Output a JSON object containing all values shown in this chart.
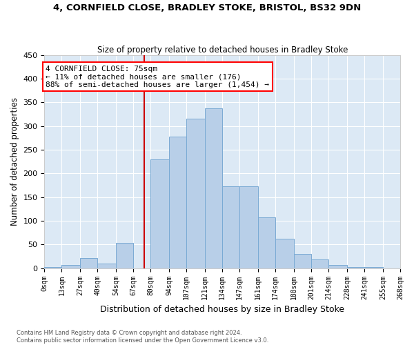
{
  "title": "4, CORNFIELD CLOSE, BRADLEY STOKE, BRISTOL, BS32 9DN",
  "subtitle": "Size of property relative to detached houses in Bradley Stoke",
  "xlabel": "Distribution of detached houses by size in Bradley Stoke",
  "ylabel": "Number of detached properties",
  "annotation_line1": "4 CORNFIELD CLOSE: 75sqm",
  "annotation_line2": "← 11% of detached houses are smaller (176)",
  "annotation_line3": "88% of semi-detached houses are larger (1,454) →",
  "property_value": 75,
  "bar_color": "#b8cfe8",
  "bar_edge_color": "#7aaad4",
  "vertical_line_color": "#cc0000",
  "bg_color": "#dce9f5",
  "footnote1": "Contains HM Land Registry data © Crown copyright and database right 2024.",
  "footnote2": "Contains public sector information licensed under the Open Government Licence v3.0.",
  "bins": [
    0,
    13,
    27,
    40,
    54,
    67,
    80,
    94,
    107,
    121,
    134,
    147,
    161,
    174,
    188,
    201,
    214,
    228,
    241,
    255,
    268
  ],
  "bin_labels": [
    "0sqm",
    "13sqm",
    "27sqm",
    "40sqm",
    "54sqm",
    "67sqm",
    "80sqm",
    "94sqm",
    "107sqm",
    "121sqm",
    "134sqm",
    "147sqm",
    "161sqm",
    "174sqm",
    "188sqm",
    "201sqm",
    "214sqm",
    "228sqm",
    "241sqm",
    "255sqm",
    "268sqm"
  ],
  "counts": [
    2,
    7,
    22,
    10,
    53,
    0,
    230,
    278,
    315,
    338,
    173,
    173,
    108,
    62,
    30,
    18,
    7,
    3,
    2,
    0
  ]
}
